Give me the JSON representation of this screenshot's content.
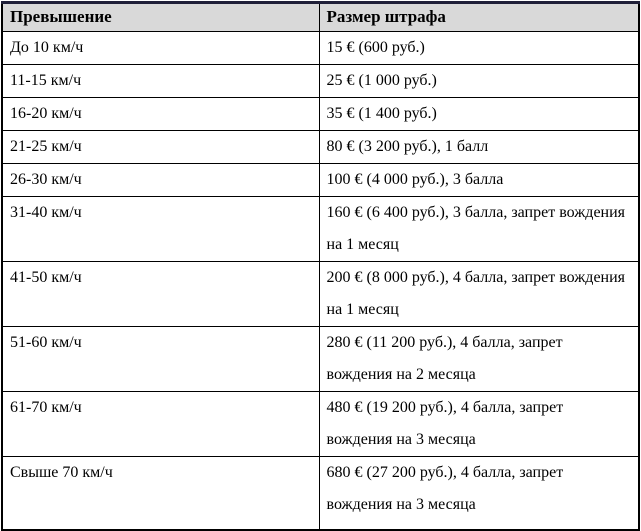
{
  "table": {
    "header": {
      "excess": "Превышение",
      "fine": "Размер штрафа"
    },
    "rows": [
      {
        "excess": "До 10 км/ч",
        "fine": "15 € (600 руб.)"
      },
      {
        "excess": "11-15 км/ч",
        "fine": "25 € (1 000 руб.)"
      },
      {
        "excess": "16-20 км/ч",
        "fine": "35 € (1 400 руб.)"
      },
      {
        "excess": "21-25 км/ч",
        "fine": "80 € (3 200 руб.), 1 балл"
      },
      {
        "excess": "26-30 км/ч",
        "fine": "100 € (4 000 руб.), 3 балла"
      },
      {
        "excess": "31-40 км/ч",
        "fine": "160 € (6 400 руб.), 3 балла, запрет вождения на 1 месяц"
      },
      {
        "excess": "41-50 км/ч",
        "fine": "200 € (8 000 руб.), 4 балла, запрет вождения на 1 месяц"
      },
      {
        "excess": "51-60 км/ч",
        "fine": "280 € (11 200 руб.), 4 балла, запрет вождения на 2 месяца"
      },
      {
        "excess": "61-70 км/ч",
        "fine": "480 € (19 200 руб.), 4 балла, запрет вождения на 3 месяца"
      },
      {
        "excess": "Свыше 70 км/ч",
        "fine": "680 € (27 200 руб.), 4 балла, запрет вождения на 3 месяца"
      }
    ]
  },
  "colors": {
    "header_background": "#d9d9d9",
    "row_background": "#ffffff",
    "border": "#000000",
    "outer_top_border": "#1f1f38",
    "text": "#000000"
  }
}
